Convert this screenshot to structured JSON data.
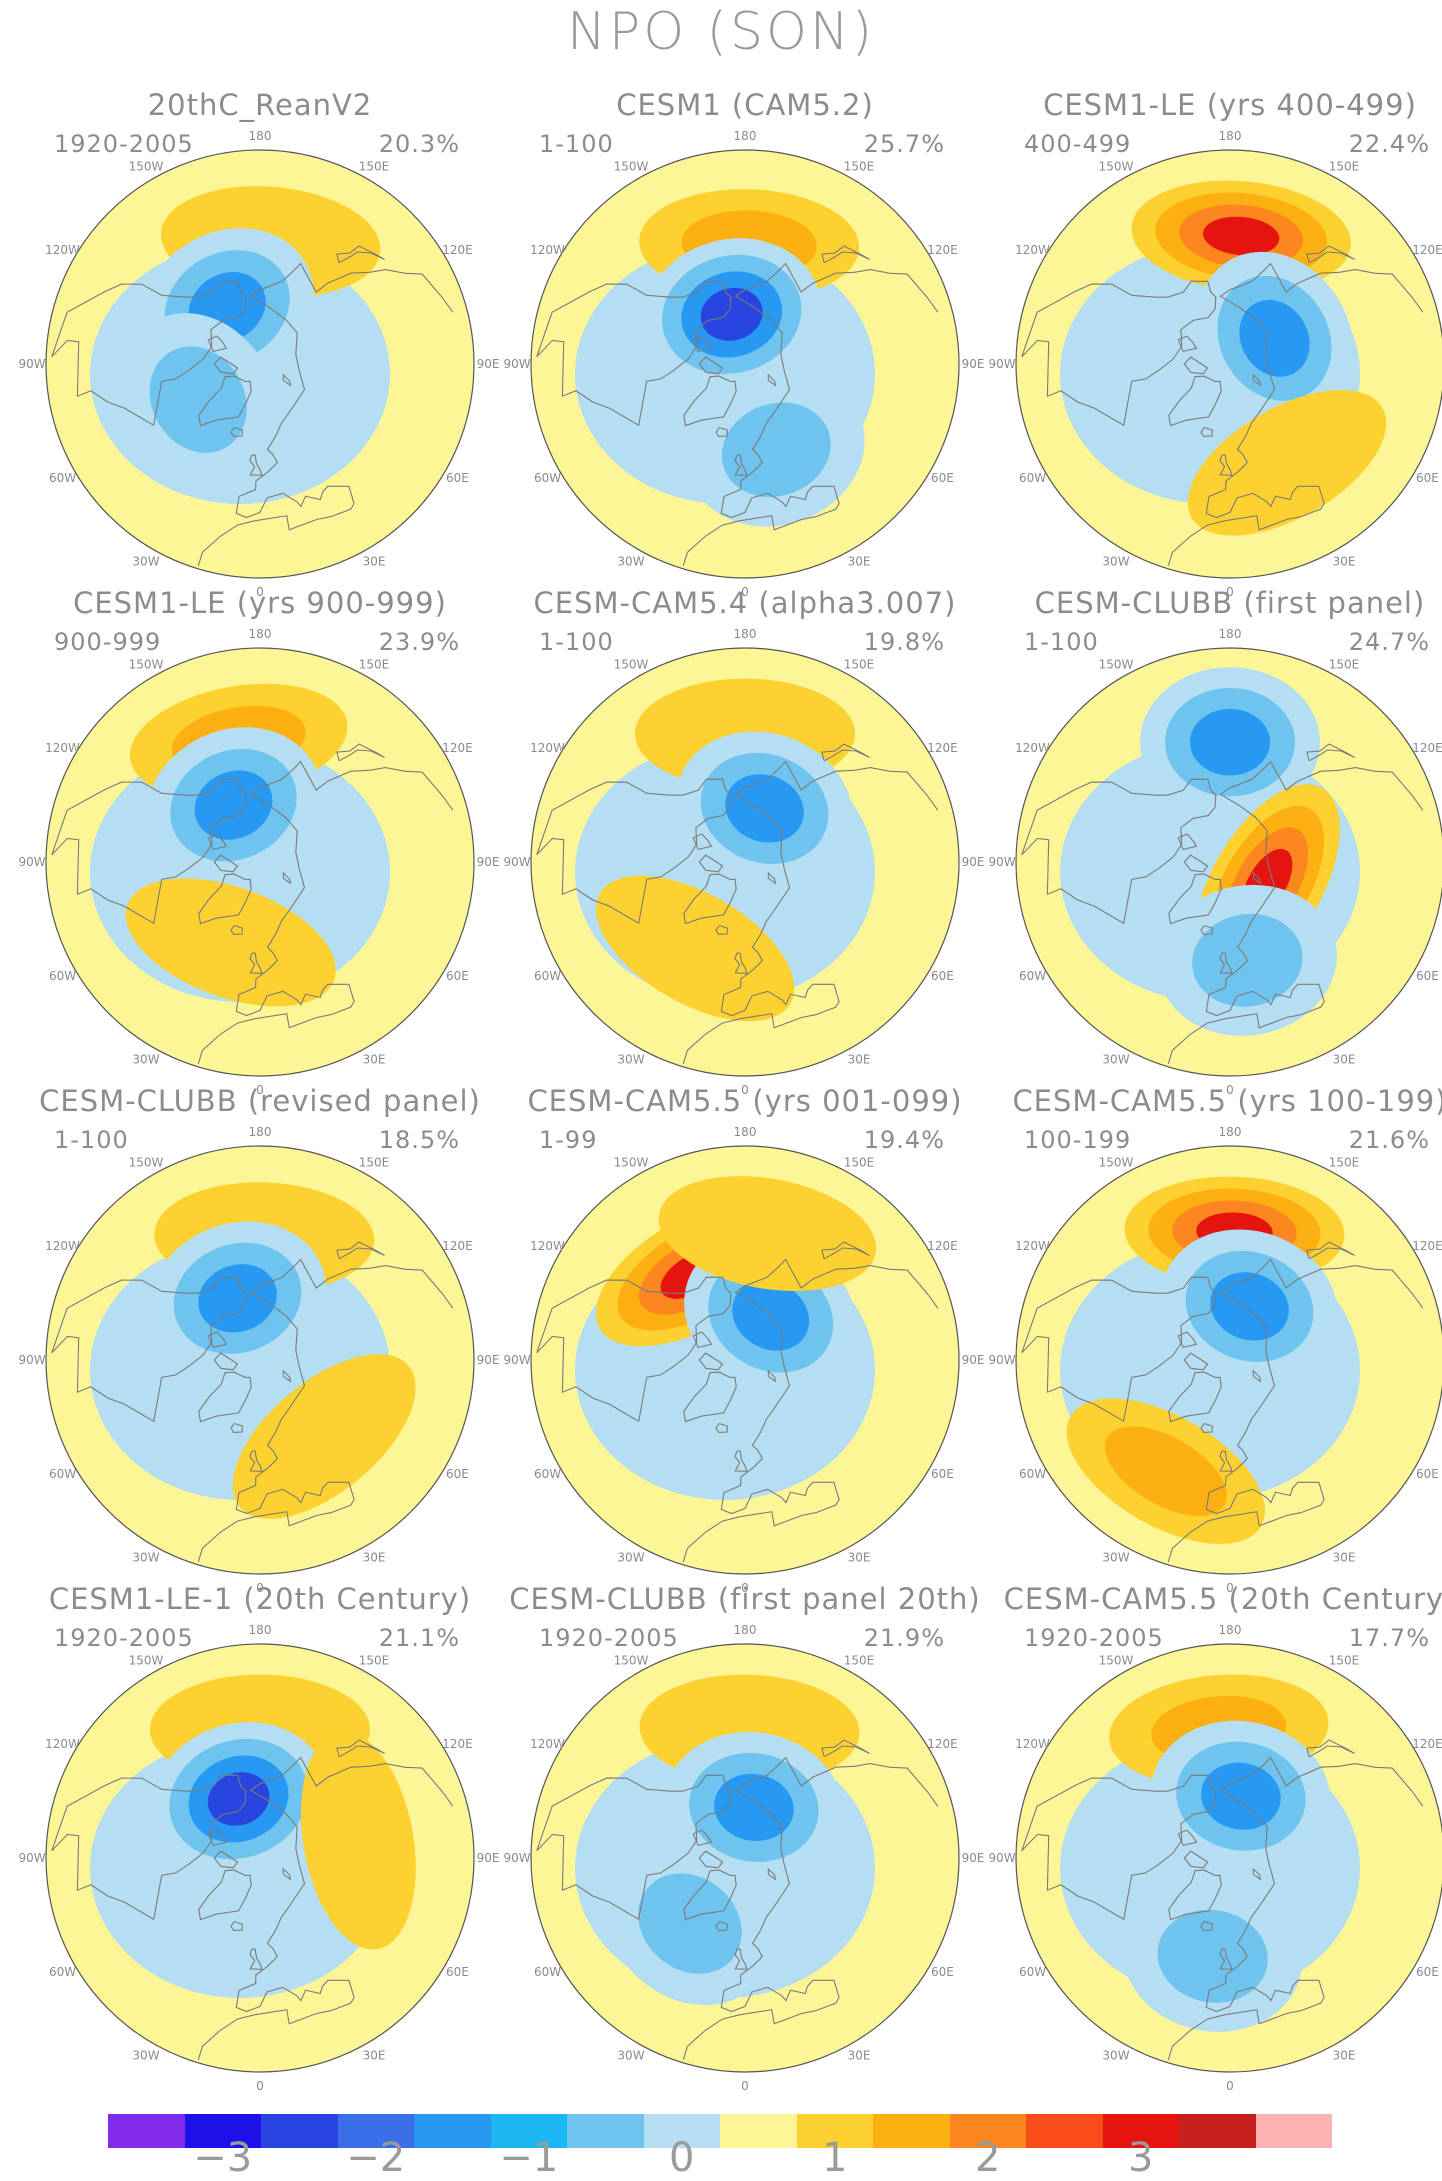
{
  "figure": {
    "title": "NPO (SON)"
  },
  "panels": [
    {
      "title": "20thC_ReanV2",
      "period": "1920-2005",
      "variance": "20.3%",
      "features": [
        {
          "sign": 1,
          "level": 1,
          "lat": 47,
          "lon": 175
        },
        {
          "sign": -1,
          "level": 2,
          "lat": 67,
          "lon": -150
        },
        {
          "sign": -1,
          "level": 1,
          "lat": 65,
          "lon": -60
        }
      ]
    },
    {
      "title": "CESM1 (CAM5.2)",
      "period": "1-100",
      "variance": "25.7%",
      "features": [
        {
          "sign": 1,
          "level": 2,
          "lat": 48,
          "lon": 178
        },
        {
          "sign": -1,
          "level": 3,
          "lat": 72,
          "lon": -165
        },
        {
          "sign": -1,
          "level": 1,
          "lat": 58,
          "lon": 20
        }
      ]
    },
    {
      "title": "CESM1-LE (yrs 400-499)",
      "period": "400-499",
      "variance": "22.4%",
      "features": [
        {
          "sign": 1,
          "level": 3,
          "lat": 45,
          "lon": 175
        },
        {
          "sign": -1,
          "level": 2,
          "lat": 72,
          "lon": 120
        },
        {
          "sign": 1,
          "level": 1,
          "lat": 50,
          "lon": 30
        }
      ]
    },
    {
      "title": "CESM1-LE (yrs 900-999)",
      "period": "900-999",
      "variance": "23.9%",
      "features": [
        {
          "sign": 1,
          "level": 2,
          "lat": 47,
          "lon": -170
        },
        {
          "sign": -1,
          "level": 2,
          "lat": 68,
          "lon": -155
        },
        {
          "sign": 1,
          "level": 1,
          "lat": 60,
          "lon": -20
        }
      ]
    },
    {
      "title": "CESM-CAM5.4 (alpha3.007)",
      "period": "1-100",
      "variance": "19.8%",
      "features": [
        {
          "sign": 1,
          "level": 1,
          "lat": 45,
          "lon": 180
        },
        {
          "sign": -1,
          "level": 2,
          "lat": 70,
          "lon": 160
        },
        {
          "sign": 1,
          "level": 1,
          "lat": 55,
          "lon": -30
        }
      ]
    },
    {
      "title": "CESM-CLUBB (first panel)",
      "period": "1-100",
      "variance": "24.7%",
      "features": [
        {
          "sign": -1,
          "level": 2,
          "lat": 48,
          "lon": 180
        },
        {
          "sign": 1,
          "level": 3,
          "lat": 75,
          "lon": 60
        },
        {
          "sign": -1,
          "level": 1,
          "lat": 55,
          "lon": 10
        }
      ]
    },
    {
      "title": "CESM-CLUBB (revised panel)",
      "period": "1-100",
      "variance": "18.5%",
      "features": [
        {
          "sign": 1,
          "level": 1,
          "lat": 47,
          "lon": 178
        },
        {
          "sign": -1,
          "level": 2,
          "lat": 67,
          "lon": -160
        },
        {
          "sign": 1,
          "level": 1,
          "lat": 55,
          "lon": 40
        }
      ]
    },
    {
      "title": "CESM-CAM5.5 (yrs 001-099)",
      "period": "1-99",
      "variance": "19.4%",
      "features": [
        {
          "sign": 1,
          "level": 3,
          "lat": 55,
          "lon": -150
        },
        {
          "sign": -1,
          "level": 2,
          "lat": 72,
          "lon": 150
        },
        {
          "sign": 1,
          "level": 1,
          "lat": 45,
          "lon": 170
        }
      ]
    },
    {
      "title": "CESM-CAM5.5 (yrs 100-199)",
      "period": "100-199",
      "variance": "21.6%",
      "features": [
        {
          "sign": 1,
          "level": 3,
          "lat": 45,
          "lon": 178
        },
        {
          "sign": -1,
          "level": 2,
          "lat": 70,
          "lon": 160
        },
        {
          "sign": 1,
          "level": 2,
          "lat": 45,
          "lon": -30
        }
      ]
    },
    {
      "title": "CESM1-LE-1 (20th Century)",
      "period": "1920-2005",
      "variance": "21.1%",
      "features": [
        {
          "sign": 1,
          "level": 1,
          "lat": 45,
          "lon": 180
        },
        {
          "sign": -1,
          "level": 3,
          "lat": 68,
          "lon": -160
        },
        {
          "sign": 1,
          "level": 1,
          "lat": 55,
          "lon": 100
        }
      ]
    },
    {
      "title": "CESM-CLUBB (first panel 20th)",
      "period": "1920-2005",
      "variance": "21.9%",
      "features": [
        {
          "sign": 1,
          "level": 1,
          "lat": 45,
          "lon": 178
        },
        {
          "sign": -1,
          "level": 2,
          "lat": 72,
          "lon": 170
        },
        {
          "sign": -1,
          "level": 1,
          "lat": 60,
          "lon": -40
        }
      ]
    },
    {
      "title": "CESM-CAM5.5 (20th Century)",
      "period": "1920-2005",
      "variance": "17.7%",
      "features": [
        {
          "sign": 1,
          "level": 2,
          "lat": 45,
          "lon": -175
        },
        {
          "sign": -1,
          "level": 2,
          "lat": 68,
          "lon": 170
        },
        {
          "sign": -1,
          "level": 1,
          "lat": 55,
          "lon": -10
        }
      ]
    }
  ],
  "map": {
    "projection": "north-polar stereographic",
    "lon_labels": [
      "180",
      "150E",
      "120E",
      "90E",
      "60E",
      "30E",
      "0",
      "30W",
      "60W",
      "90W",
      "120W",
      "150W"
    ]
  },
  "colorbar": {
    "colors": [
      "#7f2be9",
      "#1d10e9",
      "#2845df",
      "#3b6fe9",
      "#2899f2",
      "#1db8f4",
      "#6ec4ef",
      "#b5def2",
      "#fdf697",
      "#fdd12f",
      "#fdb012",
      "#fc8720",
      "#f94c19",
      "#e6140f",
      "#c4201e",
      "#fdb3b3"
    ],
    "tick_labels": [
      "−3",
      "−2",
      "−1",
      "0",
      "1",
      "2",
      "3"
    ],
    "tick_values": [
      -3,
      -2,
      -1,
      0,
      1,
      2,
      3
    ]
  },
  "field_colors": {
    "neg3": "#2845df",
    "neg2": "#2899f2",
    "neg1": "#6ec4ef",
    "neg0": "#b5def2",
    "zero": "#fdf697",
    "pos1": "#fdd12f",
    "pos2": "#fdb012",
    "pos3": "#fc8720",
    "pos4": "#e6140f",
    "coast": "#7a7a7a"
  }
}
